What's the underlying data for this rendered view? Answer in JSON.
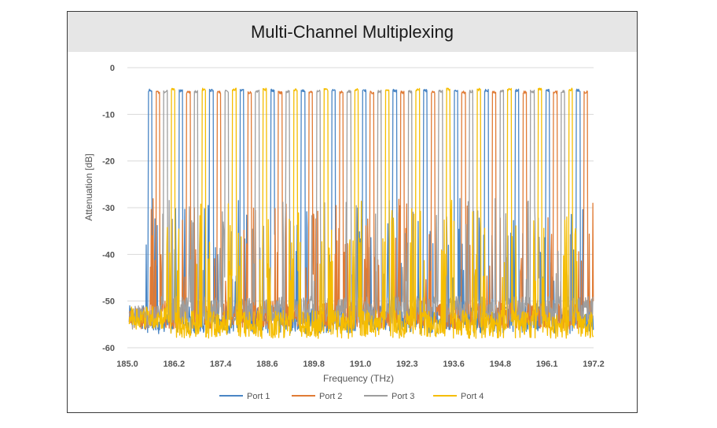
{
  "chart_data": {
    "type": "line",
    "title": "Multi-Channel Multiplexing",
    "xlabel": "Frequency (THz)",
    "ylabel": "Attenuation [dB]",
    "xlim": [
      185.0,
      197.2
    ],
    "ylim": [
      -60,
      0
    ],
    "x_ticks": [
      "185.0",
      "186.2",
      "187.4",
      "188.6",
      "189.8",
      "191.0",
      "192.3",
      "193.6",
      "194.8",
      "196.1",
      "197.2"
    ],
    "y_ticks": [
      "0",
      "-10",
      "-20",
      "-30",
      "-40",
      "-50",
      "-60"
    ],
    "grid": true,
    "legend_position": "bottom",
    "channel_width_thz": 0.1,
    "series": [
      {
        "name": "Port 1",
        "color": "#4a86c5",
        "peak_db": -4.6,
        "isolation_db": -55,
        "channel_centers_thz": [
          185.6,
          186.4,
          187.2,
          188.0,
          188.8,
          189.6,
          190.4,
          191.2,
          192.0,
          192.8,
          193.6,
          194.4,
          195.2,
          196.0,
          196.8
        ]
      },
      {
        "name": "Port 2",
        "color": "#e07b35",
        "peak_db": -5.0,
        "isolation_db": -54,
        "channel_centers_thz": [
          185.8,
          186.6,
          187.4,
          188.2,
          189.0,
          189.8,
          190.6,
          191.4,
          192.2,
          193.0,
          193.8,
          194.6,
          195.4,
          196.2,
          197.0
        ]
      },
      {
        "name": "Port 3",
        "color": "#9e9e9e",
        "peak_db": -4.8,
        "isolation_db": -53,
        "channel_centers_thz": [
          186.0,
          186.8,
          187.6,
          188.4,
          189.2,
          190.0,
          190.8,
          191.6,
          192.4,
          193.2,
          194.0,
          194.8,
          195.6,
          196.4
        ]
      },
      {
        "name": "Port 4",
        "color": "#f5bd00",
        "peak_db": -4.4,
        "isolation_db": -56,
        "channel_centers_thz": [
          186.2,
          187.0,
          187.8,
          188.6,
          189.4,
          190.2,
          191.0,
          191.8,
          192.6,
          193.4,
          194.2,
          195.0,
          195.8,
          196.6
        ]
      }
    ]
  }
}
